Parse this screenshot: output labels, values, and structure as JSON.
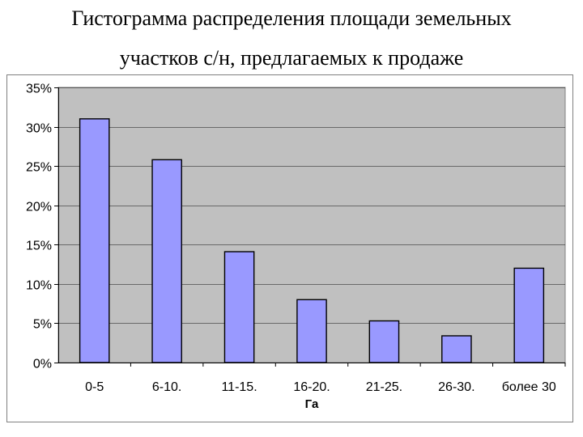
{
  "title_line1": "Гистограмма распределения площади земельных",
  "title_line2": "участков с/н, предлагаемых к продаже",
  "chart_data": {
    "type": "bar",
    "categories": [
      "0-5",
      "6-10.",
      "11-15.",
      "16-20.",
      "21-25.",
      "26-30.",
      "более 30"
    ],
    "values": [
      31,
      25.8,
      14.1,
      8,
      5.3,
      3.4,
      12
    ],
    "xlabel": "Га",
    "ylabel": "",
    "ylim": [
      0,
      35
    ],
    "yticks": [
      "0%",
      "5%",
      "10%",
      "15%",
      "20%",
      "25%",
      "30%",
      "35%"
    ],
    "grid": true,
    "legend": "none",
    "colors": {
      "bar_fill": "#9999ff",
      "bar_stroke": "#000000",
      "plot_bg": "#c0c0c0",
      "grid": "#000000"
    }
  }
}
